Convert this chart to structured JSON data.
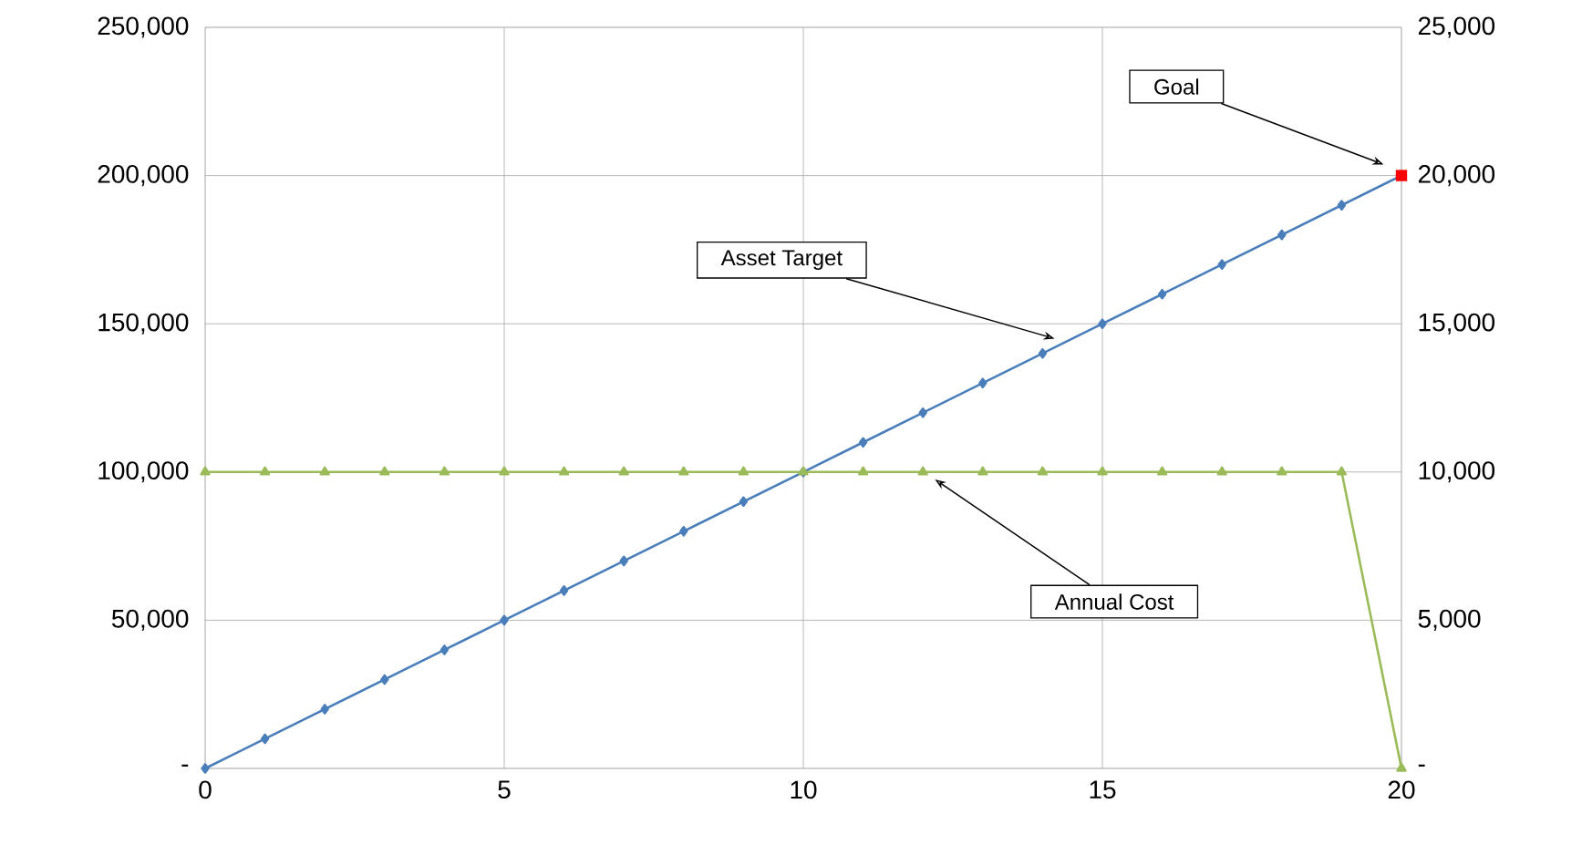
{
  "chart_data": {
    "type": "line",
    "x": [
      0,
      1,
      2,
      3,
      4,
      5,
      6,
      7,
      8,
      9,
      10,
      11,
      12,
      13,
      14,
      15,
      16,
      17,
      18,
      19,
      20
    ],
    "series": [
      {
        "color": "#4a7ebb",
        "marker": "diamond",
        "values": [
          0,
          10000,
          20000,
          30000,
          40000,
          50000,
          60000,
          70000,
          80000,
          90000,
          100000,
          110000,
          120000,
          130000,
          140000,
          150000,
          160000,
          170000,
          180000,
          190000,
          200000
        ]
      },
      {
        "color": "#9bbb59",
        "marker": "triangle",
        "axis": "y2",
        "values": [
          10000,
          10000,
          10000,
          10000,
          10000,
          10000,
          10000,
          10000,
          10000,
          10000,
          10000,
          10000,
          10000,
          10000,
          10000,
          10000,
          10000,
          10000,
          10000,
          10000,
          0
        ]
      },
      {
        "type": "scatter",
        "color": "#ff0000",
        "marker": "square",
        "x": [
          20
        ],
        "values": [
          200000
        ]
      }
    ],
    "xlim": [
      0,
      20
    ],
    "xticks": [
      0,
      5,
      10,
      15,
      20
    ],
    "ylim": [
      0,
      250000
    ],
    "yticks": [
      {
        "value": 0,
        "label": "-"
      },
      {
        "value": 50000,
        "label": "50,000"
      },
      {
        "value": 100000,
        "label": "100,000"
      },
      {
        "value": 150000,
        "label": "150,000"
      },
      {
        "value": 200000,
        "label": "200,000"
      },
      {
        "value": 250000,
        "label": "250,000"
      }
    ],
    "y2lim": [
      0,
      25000
    ],
    "y2ticks": [
      {
        "value": 0,
        "label": "-"
      },
      {
        "value": 5000,
        "label": "5,000"
      },
      {
        "value": 10000,
        "label": "10,000"
      },
      {
        "value": 15000,
        "label": "15,000"
      },
      {
        "value": 20000,
        "label": "20,000"
      },
      {
        "value": 25000,
        "label": "25,000"
      }
    ],
    "grid": true,
    "annotations": [
      "Goal",
      "Asset Target",
      "Annual Cost"
    ]
  }
}
